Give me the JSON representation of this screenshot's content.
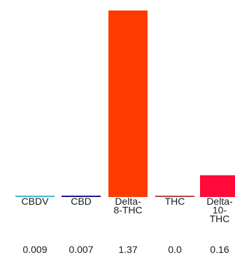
{
  "chart_data": {
    "type": "bar",
    "categories": [
      "CBDV",
      "CBD",
      "Delta-8-THC",
      "THC",
      "Delta-10-THC"
    ],
    "category_label_lines": [
      [
        "CBDV"
      ],
      [
        "CBD"
      ],
      [
        "Delta-",
        "8-THC"
      ],
      [
        "THC"
      ],
      [
        "Delta-",
        "10-",
        "THC"
      ]
    ],
    "values": [
      0.009,
      0.007,
      1.37,
      0.0,
      0.16
    ],
    "value_labels": [
      "0.009",
      "0.007",
      "1.37",
      "0.0",
      "0.16"
    ],
    "colors": [
      "#44b8d8",
      "#1a1a8a",
      "#ff3a00",
      "#b04a4a",
      "#ff0a3a"
    ],
    "ylim": [
      0,
      1.37
    ],
    "grid": false,
    "legend": "none"
  }
}
